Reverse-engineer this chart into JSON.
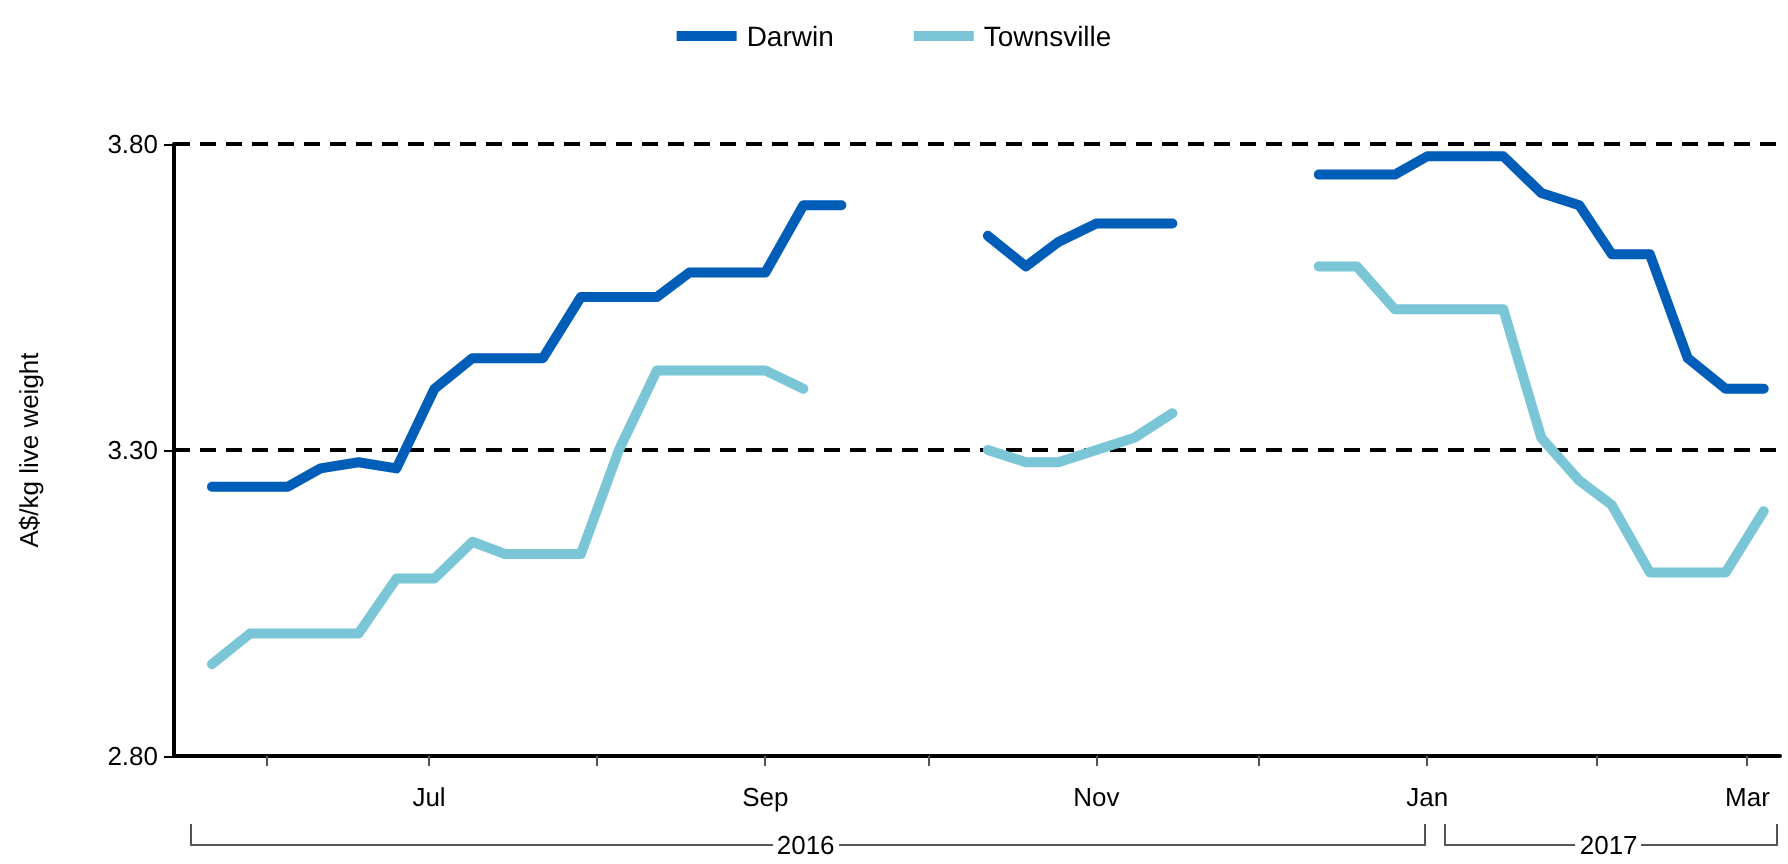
{
  "chart_data": {
    "type": "line",
    "ylabel": "A$/kg live weight",
    "x": [
      "2016-05-22",
      "2016-05-29",
      "2016-06-05",
      "2016-06-11",
      "2016-06-18",
      "2016-06-25",
      "2016-07-02",
      "2016-07-09",
      "2016-07-15",
      "2016-07-22",
      "2016-07-29",
      "2016-08-05",
      "2016-08-12",
      "2016-08-18",
      "2016-08-25",
      "2016-09-01",
      "2016-09-08",
      "2016-09-15",
      "2016-09-21",
      "2016-09-28",
      "2016-10-05",
      "2016-10-12",
      "2016-10-19",
      "2016-10-25",
      "2016-11-01",
      "2016-11-08",
      "2016-11-15",
      "2016-11-22",
      "2016-11-28",
      "2016-12-05",
      "2016-12-12",
      "2016-12-19",
      "2016-12-26",
      "2017-01-01",
      "2017-01-08",
      "2017-01-15",
      "2017-01-22",
      "2017-01-29",
      "2017-02-04",
      "2017-02-11",
      "2017-02-18",
      "2017-02-25",
      "2017-03-04"
    ],
    "series": [
      {
        "name": "Darwin",
        "color": "#005eb8",
        "values": [
          3.24,
          3.24,
          3.24,
          3.27,
          3.28,
          3.27,
          3.4,
          3.45,
          3.45,
          3.45,
          3.55,
          3.55,
          3.55,
          3.59,
          3.59,
          3.59,
          3.7,
          3.7,
          null,
          null,
          null,
          3.65,
          3.6,
          3.64,
          3.67,
          3.67,
          3.67,
          null,
          null,
          null,
          3.75,
          3.75,
          3.75,
          3.78,
          3.78,
          3.78,
          3.72,
          3.7,
          3.62,
          3.62,
          3.45,
          3.4,
          3.4
        ]
      },
      {
        "name": "Townsville",
        "color": "#7ac6d6",
        "values": [
          2.95,
          3.0,
          3.0,
          3.0,
          3.0,
          3.09,
          3.09,
          3.15,
          3.13,
          3.13,
          3.13,
          3.3,
          3.43,
          3.43,
          3.43,
          3.43,
          3.4,
          null,
          null,
          null,
          null,
          3.3,
          3.28,
          3.28,
          3.3,
          3.32,
          3.36,
          null,
          null,
          null,
          3.6,
          3.6,
          3.53,
          3.53,
          3.53,
          3.53,
          3.32,
          3.25,
          3.21,
          3.1,
          3.1,
          3.1,
          3.2
        ]
      }
    ],
    "xlim": [
      "2016-05-15",
      "2017-03-07"
    ],
    "xticks": [
      {
        "value": "2016-06-01",
        "label": null
      },
      {
        "value": "2016-07-01",
        "label": "Jul"
      },
      {
        "value": "2016-08-01",
        "label": null
      },
      {
        "value": "2016-09-01",
        "label": "Sep"
      },
      {
        "value": "2016-10-01",
        "label": null
      },
      {
        "value": "2016-11-01",
        "label": "Nov"
      },
      {
        "value": "2016-12-01",
        "label": null
      },
      {
        "value": "2017-01-01",
        "label": "Jan"
      },
      {
        "value": "2017-02-01",
        "label": null
      },
      {
        "value": "2017-03-01",
        "label": "Mar"
      }
    ],
    "ylim": [
      2.8,
      3.8
    ],
    "yticks": [
      {
        "value": 2.8,
        "label": "2.80"
      },
      {
        "value": 3.3,
        "label": "3.30"
      },
      {
        "value": 3.8,
        "label": "3.80"
      }
    ],
    "annotations": [
      "2016",
      "2017"
    ],
    "grid": "y",
    "legend": "top",
    "marker": "none",
    "line_style": "solid"
  }
}
